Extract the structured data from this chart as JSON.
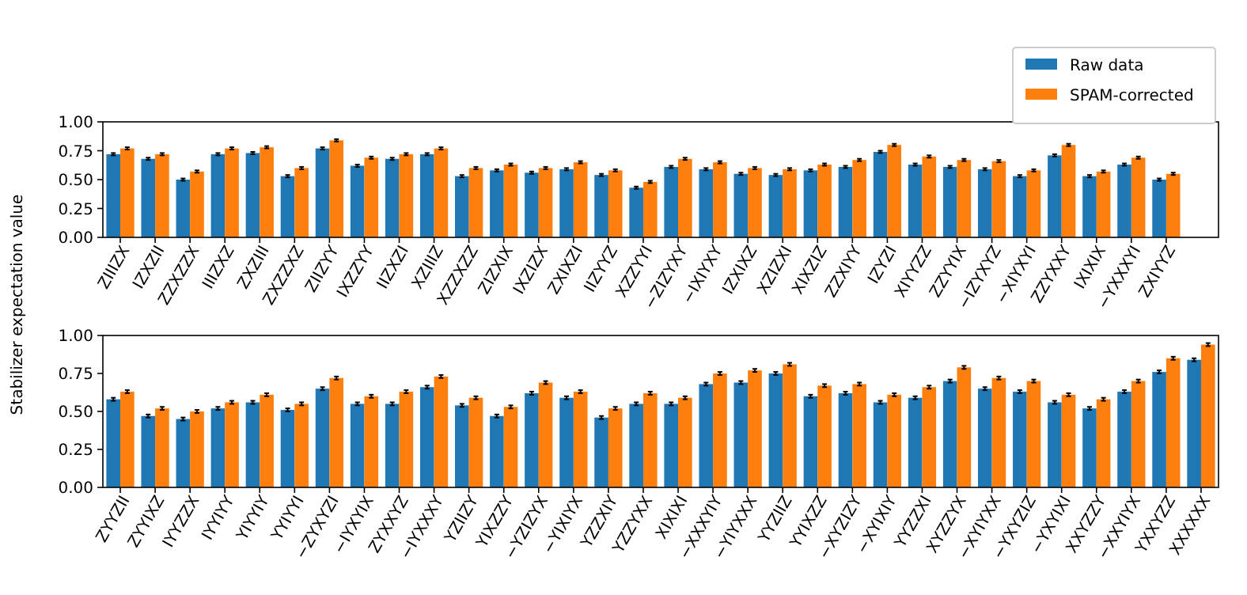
{
  "chart_data": [
    {
      "type": "bar",
      "ylabel": "Stabilizer expectation value",
      "legend": "top right",
      "ylim": [
        0,
        1
      ],
      "yticks": [
        {
          "value": 0,
          "label": "0.00"
        },
        {
          "value": 0.25,
          "label": "0.25"
        },
        {
          "value": 0.5,
          "label": "0.50"
        },
        {
          "value": 0.75,
          "label": "0.75"
        },
        {
          "value": 1,
          "label": "1.00"
        }
      ],
      "categories": [
        "ZIIIZX",
        "IZXZII",
        "ZZXZZX",
        "IIIZXZ",
        "ZXZIII",
        "ZXZZXZ",
        "ZIIZYY",
        "IXZZYY",
        "IIZXZI",
        "XZIIIZ",
        "XZZXZZ",
        "ZIZXIX",
        "IXZIZX",
        "ZXIXZI",
        "IIZYYZ",
        "XZZYYI",
        "−ZIZYXY",
        "−IXIYXY",
        "IZXIXZ",
        "XZIZXI",
        "XIXZIZ",
        "ZZXIYY",
        "IZYZI",
        "XIYYZZ",
        "ZZYYIX",
        "−IZYXYZ",
        "−XIYXYI",
        "ZZYXXY",
        "IXIXIX",
        "−YXXXYI",
        "ZXIYYZ"
      ],
      "series": [
        {
          "name": "Raw data",
          "color": "#1f77b4",
          "values": [
            0.72,
            0.68,
            0.5,
            0.72,
            0.73,
            0.53,
            0.77,
            0.62,
            0.68,
            0.72,
            0.53,
            0.58,
            0.56,
            0.59,
            0.54,
            0.43,
            0.61,
            0.59,
            0.55,
            0.54,
            0.58,
            0.61,
            0.74,
            0.63,
            0.61,
            0.59,
            0.53,
            0.71,
            0.53,
            0.63,
            0.5
          ],
          "errors": [
            0.01,
            0.01,
            0.01,
            0.01,
            0.01,
            0.01,
            0.01,
            0.01,
            0.01,
            0.01,
            0.01,
            0.01,
            0.01,
            0.01,
            0.01,
            0.01,
            0.01,
            0.01,
            0.01,
            0.01,
            0.01,
            0.01,
            0.01,
            0.01,
            0.01,
            0.01,
            0.01,
            0.01,
            0.01,
            0.01,
            0.01
          ]
        },
        {
          "name": "SPAM-corrected",
          "color": "#ff7f0e",
          "values": [
            0.77,
            0.72,
            0.57,
            0.77,
            0.78,
            0.6,
            0.84,
            0.69,
            0.72,
            0.77,
            0.6,
            0.63,
            0.6,
            0.65,
            0.58,
            0.48,
            0.68,
            0.65,
            0.6,
            0.59,
            0.63,
            0.67,
            0.8,
            0.7,
            0.67,
            0.66,
            0.58,
            0.8,
            0.57,
            0.69,
            0.55
          ],
          "errors": [
            0.01,
            0.01,
            0.01,
            0.01,
            0.01,
            0.01,
            0.01,
            0.01,
            0.01,
            0.01,
            0.01,
            0.01,
            0.01,
            0.01,
            0.01,
            0.01,
            0.01,
            0.01,
            0.01,
            0.01,
            0.01,
            0.01,
            0.01,
            0.01,
            0.01,
            0.01,
            0.01,
            0.01,
            0.01,
            0.01,
            0.01
          ]
        }
      ]
    },
    {
      "type": "bar",
      "ylim": [
        0,
        1
      ],
      "yticks": [
        {
          "value": 0,
          "label": "0.00"
        },
        {
          "value": 0.25,
          "label": "0.25"
        },
        {
          "value": 0.5,
          "label": "0.50"
        },
        {
          "value": 0.75,
          "label": "0.75"
        },
        {
          "value": 1,
          "label": "1.00"
        }
      ],
      "categories": [
        "ZYYZII",
        "ZYYIXZ",
        "IYYZZX",
        "IYYIYY",
        "YIYYIY",
        "YYIYYI",
        "−ZYXYZI",
        "−IYXYIX",
        "ZYXXYZ",
        "−IYXXXY",
        "YZIIZY",
        "YIXZZY",
        "−YZIZYX",
        "−YIXIYX",
        "YZZXIY",
        "YZZYXX",
        "XIXIXI",
        "−XXXYIY",
        "−YIYXXX",
        "YYZIIZ",
        "YYIXZZ",
        "−XYZIZY",
        "−XYIXIY",
        "YYZZXI",
        "XYZZYX",
        "−XYIYXX",
        "−YXYZIZ",
        "−YXYIXI",
        "XXYZZY",
        "−XXYIYX",
        "YXXYZZ",
        "XXXXXX"
      ],
      "series": [
        {
          "color": "#1f77b4",
          "values": [
            0.58,
            0.47,
            0.45,
            0.52,
            0.56,
            0.51,
            0.65,
            0.55,
            0.55,
            0.66,
            0.54,
            0.47,
            0.62,
            0.59,
            0.46,
            0.55,
            0.55,
            0.68,
            0.69,
            0.75,
            0.6,
            0.62,
            0.56,
            0.59,
            0.7,
            0.65,
            0.63,
            0.56,
            0.52,
            0.63,
            0.76,
            0.84
          ],
          "errors": [
            0.01,
            0.01,
            0.01,
            0.01,
            0.01,
            0.01,
            0.01,
            0.01,
            0.01,
            0.01,
            0.01,
            0.01,
            0.01,
            0.01,
            0.01,
            0.01,
            0.01,
            0.01,
            0.01,
            0.01,
            0.01,
            0.01,
            0.01,
            0.01,
            0.01,
            0.01,
            0.01,
            0.01,
            0.01,
            0.01,
            0.01,
            0.01
          ]
        },
        {
          "color": "#ff7f0e",
          "values": [
            0.63,
            0.52,
            0.5,
            0.56,
            0.61,
            0.55,
            0.72,
            0.6,
            0.63,
            0.73,
            0.59,
            0.53,
            0.69,
            0.63,
            0.52,
            0.62,
            0.59,
            0.75,
            0.77,
            0.81,
            0.67,
            0.68,
            0.61,
            0.66,
            0.79,
            0.72,
            0.7,
            0.61,
            0.58,
            0.7,
            0.85,
            0.94
          ],
          "errors": [
            0.01,
            0.01,
            0.01,
            0.01,
            0.01,
            0.01,
            0.01,
            0.01,
            0.01,
            0.01,
            0.01,
            0.01,
            0.01,
            0.01,
            0.01,
            0.01,
            0.01,
            0.01,
            0.01,
            0.01,
            0.01,
            0.01,
            0.01,
            0.01,
            0.01,
            0.01,
            0.01,
            0.01,
            0.01,
            0.01,
            0.01,
            0.01
          ]
        }
      ]
    }
  ]
}
